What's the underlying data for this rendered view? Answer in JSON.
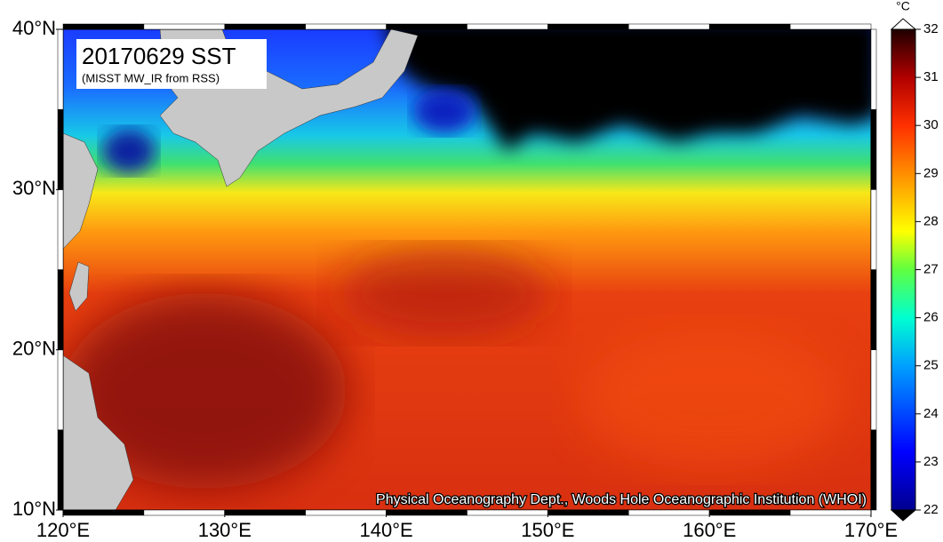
{
  "chart_data": {
    "type": "map",
    "title": "20170629 SST",
    "subtitle": "(MISST MW_IR from RSS)",
    "credit": "Physical Oceanography Dept., Woods Hole Oceanographic Institution (WHOI)",
    "xlim": [
      120,
      170
    ],
    "xticks": [
      {
        "value": 120,
        "label": "120°E"
      },
      {
        "value": 130,
        "label": "130°E"
      },
      {
        "value": 140,
        "label": "140°E"
      },
      {
        "value": 150,
        "label": "150°E"
      },
      {
        "value": 160,
        "label": "160°E"
      },
      {
        "value": 170,
        "label": "170°E"
      }
    ],
    "ylim": [
      10,
      40
    ],
    "yticks": [
      {
        "value": 10,
        "label": "10°N"
      },
      {
        "value": 20,
        "label": "20°N"
      },
      {
        "value": 30,
        "label": "30°N"
      },
      {
        "value": 40,
        "label": "40°N"
      }
    ],
    "colorbar": {
      "label": "°C",
      "lim": [
        22,
        32
      ],
      "ticks": [
        22,
        23,
        24,
        25,
        26,
        27,
        28,
        29,
        30,
        31,
        32
      ]
    }
  }
}
